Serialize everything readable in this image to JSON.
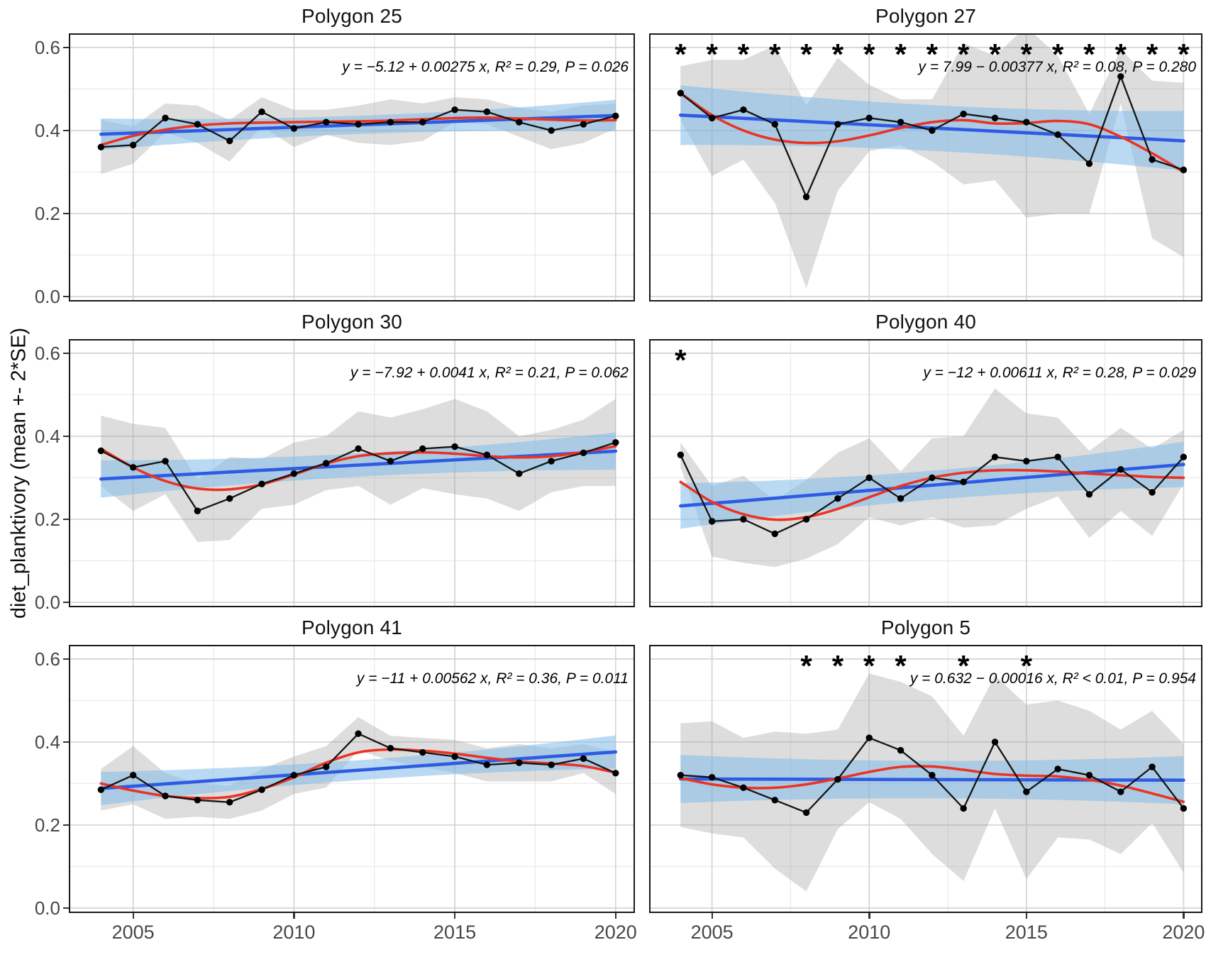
{
  "figure": {
    "y_axis_label": "diet_planktivory (mean +- 2*SE)",
    "years": [
      2004,
      2005,
      2006,
      2007,
      2008,
      2009,
      2010,
      2011,
      2012,
      2013,
      2014,
      2015,
      2016,
      2017,
      2018,
      2019,
      2020
    ],
    "x_ticks": {
      "values": [
        2005,
        2010,
        2015,
        2020
      ],
      "labels": [
        "2005",
        "2010",
        "2015",
        "2020"
      ]
    },
    "y_ticks": {
      "values": [
        0.0,
        0.2,
        0.4,
        0.6
      ],
      "labels": [
        "0.0",
        "0.2",
        "0.4",
        "0.6"
      ]
    },
    "x_minor": [
      2007.5,
      2012.5,
      2017.5
    ],
    "y_minor": [
      0.1,
      0.3,
      0.5
    ],
    "x_domain": [
      2003.0,
      2020.6
    ],
    "y_domain": [
      -0.012,
      0.634
    ],
    "grid": "on",
    "legend_position": "none",
    "significance_marker": "*",
    "colors": {
      "trend_line": "#2e5be4",
      "trend_ci_fill": "#7fbbe8",
      "loess_line": "#ec3323",
      "series_line": "#141414",
      "point_fill": "#000000",
      "ribbon_fill": "#9e9e9e",
      "grid_major": "#d4d4d4",
      "grid_minor": "#e9e9e9",
      "panel_border": "#1a1a1a",
      "tick_text": "#474747",
      "title_text": "#111111"
    }
  },
  "chart_data": [
    {
      "type": "line",
      "title": "Polygon 25",
      "equation": "y = −5.12 + 0.00275 x, R² = 0.29, P = 0.026",
      "values": [
        0.36,
        0.365,
        0.43,
        0.415,
        0.375,
        0.445,
        0.405,
        0.42,
        0.415,
        0.42,
        0.42,
        0.45,
        0.445,
        0.42,
        0.4,
        0.415,
        0.435
      ],
      "se2": [
        0.065,
        0.045,
        0.035,
        0.045,
        0.05,
        0.035,
        0.045,
        0.03,
        0.045,
        0.055,
        0.045,
        0.03,
        0.03,
        0.035,
        0.045,
        0.045,
        0.03
      ],
      "loess": [
        0.365,
        0.387,
        0.402,
        0.412,
        0.417,
        0.419,
        0.42,
        0.421,
        0.422,
        0.424,
        0.427,
        0.43,
        0.431,
        0.429,
        0.426,
        0.424,
        0.425
      ],
      "trend": {
        "start": 0.391,
        "end": 0.436,
        "ci_center": 0.022,
        "ci_edge": 0.038
      },
      "asterisk_years": []
    },
    {
      "type": "line",
      "title": "Polygon 27",
      "equation": "y = 7.99 − 0.00377 x, R² = 0.08, P = 0.280",
      "values": [
        0.49,
        0.43,
        0.45,
        0.415,
        0.24,
        0.415,
        0.43,
        0.42,
        0.4,
        0.44,
        0.43,
        0.42,
        0.39,
        0.32,
        0.53,
        0.33,
        0.305
      ],
      "se2": [
        0.065,
        0.14,
        0.12,
        0.19,
        0.22,
        0.16,
        0.08,
        0.055,
        0.075,
        0.17,
        0.15,
        0.23,
        0.19,
        0.12,
        0.065,
        0.19,
        0.21
      ],
      "loess": [
        0.49,
        0.437,
        0.4,
        0.378,
        0.37,
        0.374,
        0.388,
        0.406,
        0.42,
        0.425,
        0.417,
        0.418,
        0.423,
        0.415,
        0.385,
        0.345,
        0.3
      ],
      "trend": {
        "start": 0.437,
        "end": 0.375,
        "ci_center": 0.055,
        "ci_edge": 0.072
      },
      "asterisk_years": [
        2004,
        2005,
        2006,
        2007,
        2008,
        2009,
        2010,
        2011,
        2012,
        2013,
        2014,
        2015,
        2016,
        2017,
        2018,
        2019,
        2020
      ]
    },
    {
      "type": "line",
      "title": "Polygon 30",
      "equation": "y = −7.92 + 0.0041 x, R² = 0.21, P = 0.062",
      "values": [
        0.365,
        0.325,
        0.34,
        0.22,
        0.25,
        0.285,
        0.31,
        0.335,
        0.37,
        0.34,
        0.37,
        0.375,
        0.355,
        0.31,
        0.34,
        0.36,
        0.385
      ],
      "se2": [
        0.085,
        0.105,
        0.08,
        0.075,
        0.1,
        0.06,
        0.075,
        0.065,
        0.09,
        0.105,
        0.095,
        0.115,
        0.105,
        0.09,
        0.075,
        0.08,
        0.105
      ],
      "loess": [
        0.37,
        0.325,
        0.292,
        0.274,
        0.272,
        0.284,
        0.308,
        0.334,
        0.352,
        0.359,
        0.361,
        0.358,
        0.352,
        0.349,
        0.352,
        0.362,
        0.376
      ],
      "trend": {
        "start": 0.297,
        "end": 0.364,
        "ci_center": 0.028,
        "ci_edge": 0.045
      },
      "asterisk_years": []
    },
    {
      "type": "line",
      "title": "Polygon 40",
      "equation": "y = −12 + 0.00611 x, R² = 0.28, P = 0.029",
      "values": [
        0.355,
        0.195,
        0.2,
        0.165,
        0.2,
        0.25,
        0.3,
        0.25,
        0.3,
        0.29,
        0.35,
        0.34,
        0.35,
        0.26,
        0.32,
        0.265,
        0.35
      ],
      "se2": [
        0.03,
        0.085,
        0.105,
        0.08,
        0.095,
        0.11,
        0.095,
        0.065,
        0.095,
        0.11,
        0.165,
        0.115,
        0.095,
        0.105,
        0.1,
        0.105,
        0.065
      ],
      "loess": [
        0.29,
        0.242,
        0.212,
        0.199,
        0.205,
        0.225,
        0.253,
        0.28,
        0.3,
        0.312,
        0.318,
        0.318,
        0.315,
        0.31,
        0.306,
        0.302,
        0.3
      ],
      "trend": {
        "start": 0.232,
        "end": 0.332,
        "ci_center": 0.035,
        "ci_edge": 0.055
      },
      "asterisk_years": [
        2004
      ]
    },
    {
      "type": "line",
      "title": "Polygon 41",
      "equation": "y = −11 + 0.00562 x, R² = 0.36, P = 0.011",
      "values": [
        0.285,
        0.32,
        0.27,
        0.26,
        0.255,
        0.285,
        0.32,
        0.34,
        0.42,
        0.385,
        0.375,
        0.365,
        0.345,
        0.35,
        0.345,
        0.36,
        0.325
      ],
      "se2": [
        0.05,
        0.07,
        0.055,
        0.04,
        0.04,
        0.05,
        0.045,
        0.05,
        0.04,
        0.03,
        0.035,
        0.04,
        0.04,
        0.045,
        0.04,
        0.035,
        0.05
      ],
      "loess": [
        0.3,
        0.283,
        0.27,
        0.265,
        0.268,
        0.287,
        0.315,
        0.35,
        0.375,
        0.382,
        0.379,
        0.372,
        0.362,
        0.353,
        0.348,
        0.342,
        0.326
      ],
      "trend": {
        "start": 0.288,
        "end": 0.376,
        "ci_center": 0.024,
        "ci_edge": 0.04
      },
      "asterisk_years": []
    },
    {
      "type": "line",
      "title": "Polygon 5",
      "equation": "y = 0.632 − 0.00016 x, R² < 0.01, P = 0.954",
      "values": [
        0.32,
        0.315,
        0.29,
        0.26,
        0.23,
        0.31,
        0.41,
        0.38,
        0.32,
        0.24,
        0.4,
        0.28,
        0.335,
        0.32,
        0.28,
        0.34,
        0.24
      ],
      "se2": [
        0.125,
        0.135,
        0.12,
        0.165,
        0.19,
        0.12,
        0.155,
        0.165,
        0.19,
        0.175,
        0.16,
        0.21,
        0.165,
        0.155,
        0.15,
        0.135,
        0.155
      ],
      "loess": [
        0.313,
        0.298,
        0.29,
        0.29,
        0.298,
        0.312,
        0.328,
        0.34,
        0.341,
        0.333,
        0.323,
        0.319,
        0.317,
        0.309,
        0.295,
        0.276,
        0.256
      ],
      "trend": {
        "start": 0.311,
        "end": 0.308,
        "ci_center": 0.045,
        "ci_edge": 0.058
      },
      "asterisk_years": [
        2008,
        2009,
        2010,
        2011,
        2013,
        2015
      ]
    }
  ]
}
